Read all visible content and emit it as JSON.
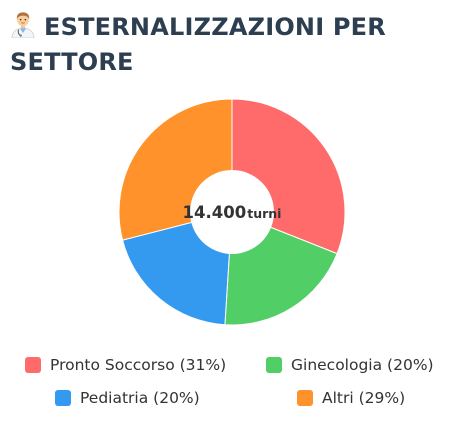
{
  "header": {
    "emoji": "doctor-emoji",
    "title": "ESTERNALIZZAZIONI PER SETTORE"
  },
  "chart_data": {
    "type": "pie",
    "donut": true,
    "center_value": "14.400",
    "center_unit": "turni",
    "slices": [
      {
        "label": "Pronto Soccorso",
        "percent": 31,
        "legend": "Pronto Soccorso (31%)",
        "color": "#ff6b6b"
      },
      {
        "label": "Ginecologia",
        "percent": 20,
        "legend": "Ginecologia (20%)",
        "color": "#51cf66"
      },
      {
        "label": "Pediatria",
        "percent": 20,
        "legend": "Pediatria (20%)",
        "color": "#339af0"
      },
      {
        "label": "Altri",
        "percent": 29,
        "legend": "Altri (29%)",
        "color": "#ff922b"
      }
    ],
    "legend_position": "bottom"
  }
}
